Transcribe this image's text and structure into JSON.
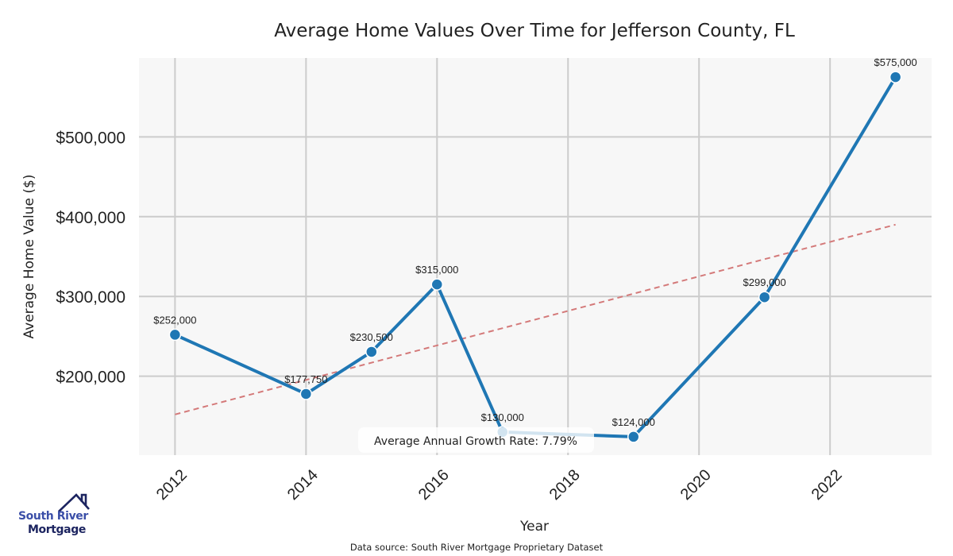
{
  "chart_data": {
    "type": "line",
    "title": "Average Home Values Over Time for Jefferson County, FL",
    "xlabel": "Year",
    "ylabel": "Average Home Value ($)",
    "x": [
      2012,
      2014,
      2015,
      2016,
      2017,
      2019,
      2021,
      2023
    ],
    "series": [
      {
        "name": "Average Home Value",
        "values": [
          252000,
          177750,
          230500,
          315000,
          130000,
          124000,
          299000,
          575000
        ],
        "labels": [
          "$252,000",
          "$177,750",
          "$230,500",
          "$315,000",
          "$130,000",
          "$124,000",
          "$299,000",
          "$575,000"
        ],
        "color": "#1f77b4",
        "marker": "circle"
      },
      {
        "name": "Trend",
        "style": "dashed",
        "color": "#d47a7a",
        "x": [
          2012,
          2023
        ],
        "values": [
          152000,
          390000
        ]
      }
    ],
    "xticks": [
      2012,
      2014,
      2016,
      2018,
      2020,
      2022
    ],
    "xtick_labels": [
      "2012",
      "2014",
      "2016",
      "2018",
      "2020",
      "2022"
    ],
    "yticks": [
      200000,
      300000,
      400000,
      500000
    ],
    "ytick_labels": [
      "$200,000",
      "$300,000",
      "$400,000",
      "$500,000"
    ],
    "xlim": [
      2011.45,
      2023.55
    ],
    "ylim": [
      101000,
      599000
    ],
    "grid": true,
    "annotation": "Average Annual Growth Rate: 7.79%",
    "source_note": "Data source: South River Mortgage Proprietary Dataset",
    "colors": {
      "plot_background": "#f7f7f7",
      "grid": "#cccccc",
      "line": "#1f77b4",
      "trend": "#d47a7a"
    }
  },
  "logo": {
    "line1": "South River",
    "line2": "Mortgage"
  }
}
